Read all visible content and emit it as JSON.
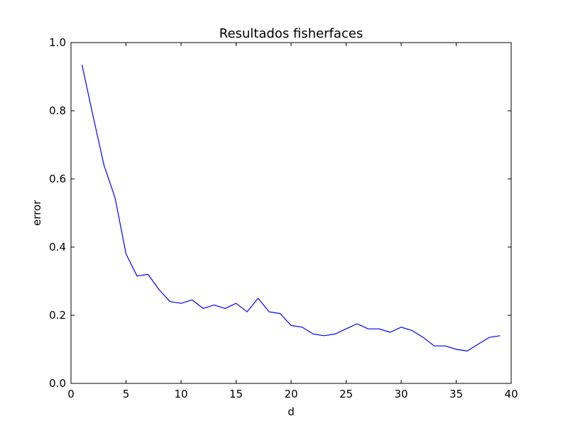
{
  "chart_data": {
    "type": "line",
    "title": "Resultados fisherfaces",
    "xlabel": "d",
    "ylabel": "error",
    "xlim": [
      0,
      40
    ],
    "ylim": [
      0.0,
      1.0
    ],
    "grid": false,
    "xticks": [
      {
        "value": 0,
        "label": "0"
      },
      {
        "value": 5,
        "label": "5"
      },
      {
        "value": 10,
        "label": "10"
      },
      {
        "value": 15,
        "label": "15"
      },
      {
        "value": 20,
        "label": "20"
      },
      {
        "value": 25,
        "label": "25"
      },
      {
        "value": 30,
        "label": "30"
      },
      {
        "value": 35,
        "label": "35"
      },
      {
        "value": 40,
        "label": "40"
      }
    ],
    "yticks": [
      {
        "value": 0.0,
        "label": "0.0"
      },
      {
        "value": 0.2,
        "label": "0.2"
      },
      {
        "value": 0.4,
        "label": "0.4"
      },
      {
        "value": 0.6,
        "label": "0.6"
      },
      {
        "value": 0.8,
        "label": "0.8"
      },
      {
        "value": 1.0,
        "label": "1.0"
      }
    ],
    "series": [
      {
        "color": "#0000ff",
        "x": [
          1,
          2,
          3,
          4,
          5,
          6,
          7,
          8,
          9,
          10,
          11,
          12,
          13,
          14,
          15,
          16,
          17,
          18,
          19,
          20,
          21,
          22,
          23,
          24,
          25,
          26,
          27,
          28,
          29,
          30,
          31,
          32,
          33,
          34,
          35,
          36,
          37,
          38,
          39
        ],
        "y": [
          0.935,
          0.785,
          0.64,
          0.545,
          0.38,
          0.315,
          0.32,
          0.275,
          0.24,
          0.235,
          0.245,
          0.22,
          0.23,
          0.22,
          0.235,
          0.21,
          0.25,
          0.21,
          0.205,
          0.17,
          0.165,
          0.145,
          0.14,
          0.145,
          0.16,
          0.175,
          0.16,
          0.16,
          0.15,
          0.165,
          0.155,
          0.135,
          0.11,
          0.11,
          0.1,
          0.095,
          0.115,
          0.135,
          0.14
        ]
      }
    ]
  }
}
